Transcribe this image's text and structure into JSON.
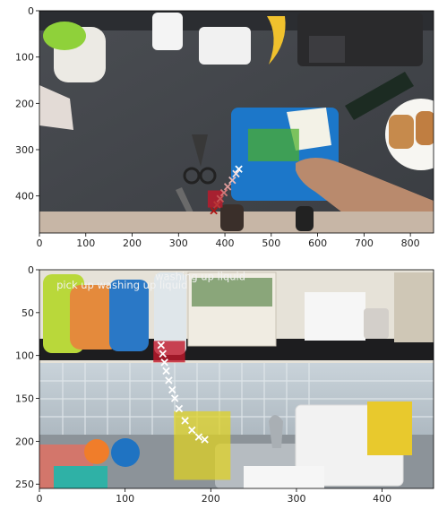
{
  "chart_data": [
    {
      "type": "image_overlay",
      "title": "",
      "xlim": [
        0,
        850
      ],
      "ylim": [
        480,
        0
      ],
      "xticks": [
        0,
        100,
        200,
        300,
        400,
        500,
        600,
        700,
        800
      ],
      "yticks": [
        0,
        100,
        200,
        300,
        400
      ],
      "scene": "overhead kitchen counter",
      "trajectory_points": [
        {
          "x": 430,
          "y": 342
        },
        {
          "x": 424,
          "y": 352
        },
        {
          "x": 416,
          "y": 366
        },
        {
          "x": 406,
          "y": 380
        },
        {
          "x": 398,
          "y": 393
        },
        {
          "x": 390,
          "y": 406
        },
        {
          "x": 383,
          "y": 419
        },
        {
          "x": 376,
          "y": 432
        }
      ],
      "regions": [
        {
          "name": "target",
          "color": "#4caf2a",
          "x": [
            450,
            560
          ],
          "y": [
            255,
            325
          ]
        },
        {
          "name": "start",
          "color": "#c0182a",
          "x": [
            363,
            395
          ],
          "y": [
            388,
            425
          ]
        }
      ],
      "annotations": []
    },
    {
      "type": "image_overlay",
      "title": "",
      "xlim": [
        0,
        460
      ],
      "ylim": [
        255,
        0
      ],
      "xticks": [
        0,
        100,
        200,
        300,
        400
      ],
      "yticks": [
        0,
        50,
        100,
        150,
        200,
        250
      ],
      "scene": "kitchen shelf above sink",
      "trajectory_points": [
        {
          "x": 193,
          "y": 198
        },
        {
          "x": 186,
          "y": 195
        },
        {
          "x": 178,
          "y": 187
        },
        {
          "x": 170,
          "y": 176
        },
        {
          "x": 163,
          "y": 162
        },
        {
          "x": 158,
          "y": 150
        },
        {
          "x": 155,
          "y": 140
        },
        {
          "x": 151,
          "y": 129
        },
        {
          "x": 148,
          "y": 118
        },
        {
          "x": 146,
          "y": 108
        },
        {
          "x": 144,
          "y": 98
        },
        {
          "x": 142,
          "y": 88
        }
      ],
      "regions": [
        {
          "name": "target",
          "color": "#e0d21e",
          "x": [
            157,
            223
          ],
          "y": [
            165,
            245
          ]
        },
        {
          "name": "start",
          "color": "#c0182a",
          "x": [
            133,
            170
          ],
          "y": [
            83,
            108
          ]
        }
      ],
      "annotations": [
        {
          "text": "pick up washing up liquid",
          "x": 20,
          "y": 18
        },
        {
          "text": "washing up liquid",
          "x": 135,
          "y": 8
        }
      ]
    }
  ]
}
